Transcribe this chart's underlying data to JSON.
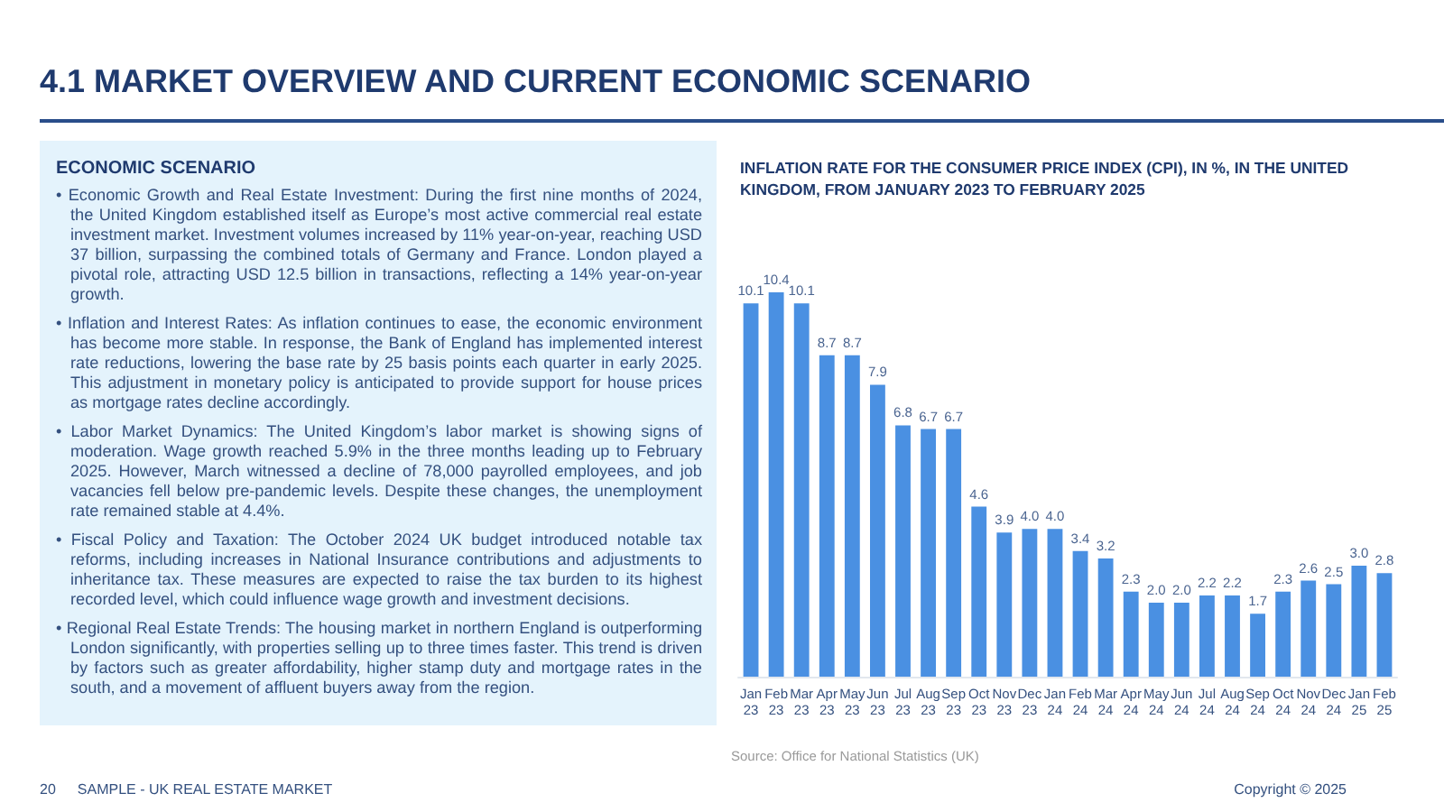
{
  "chart_data": [
    {
      "type": "other",
      "title": "4.1 MARKET OVERVIEW AND CURRENT ECONOMIC SCENARIO",
      "subtitle": "ECONOMIC SCENARIO",
      "annotations": [
        "• Economic Growth and Real Estate Investment: During the first nine months of 2024, the United Kingdom established itself as Europe’s most active commercial real estate investment market. Investment volumes increased by 11% year-on-year, reaching USD 37 billion, surpassing the combined totals of Germany and France. London played a pivotal role, attracting USD 12.5 billion in transactions, reflecting a 14% year-on-year growth.",
        "• Inflation and Interest Rates: As inflation continues to ease, the economic environment has become more stable. In response, the Bank of England has implemented interest rate reductions, lowering the base rate by 25 basis points each quarter in early 2025. This adjustment in monetary policy is anticipated to provide support for house prices as mortgage rates decline accordingly.",
        "• Labor Market Dynamics: The United Kingdom’s labor market is showing signs of moderation. Wage growth reached 5.9% in the three months leading up to February 2025. However, March witnessed a decline of 78,000 payrolled employees, and job vacancies fell below pre-pandemic levels. Despite these changes, the unemployment rate remained stable at 4.4%.",
        "• Fiscal Policy and Taxation: The October 2024 UK budget introduced notable tax reforms, including increases in National Insurance contributions and adjustments to inheritance tax. These measures are expected to raise the tax burden to its highest recorded level, which could influence wage growth and investment decisions.",
        "• Regional Real Estate Trends: The housing market in northern England is outperforming London significantly, with properties selling up to three times faster. This trend is driven by factors such as greater affordability, higher stamp duty and mortgage rates in the south, and a movement of affluent buyers away from the region."
      ]
    },
    {
      "type": "bar",
      "title": "INFLATION RATE FOR THE CONSUMER PRICE INDEX (CPI), IN %, IN THE UNITED KINGDOM, FROM JANUARY 2023 TO FEBRUARY 2025",
      "categories": [
        "Jan 23",
        "Feb 23",
        "Mar 23",
        "Apr 23",
        "May 23",
        "Jun 23",
        "Jul 23",
        "Aug 23",
        "Sep 23",
        "Oct 23",
        "Nov 23",
        "Dec 23",
        "Jan 24",
        "Feb 24",
        "Mar 24",
        "Apr 24",
        "May 24",
        "Jun 24",
        "Jul 24",
        "Aug 24",
        "Sep 24",
        "Oct 24",
        "Nov 24",
        "Dec 24",
        "Jan 25",
        "Feb 25"
      ],
      "values": [
        10.1,
        10.4,
        10.1,
        8.7,
        8.7,
        7.9,
        6.8,
        6.7,
        6.7,
        4.6,
        3.9,
        4.0,
        4.0,
        3.4,
        3.2,
        2.3,
        2.0,
        2.0,
        2.2,
        2.2,
        1.7,
        2.3,
        2.6,
        2.5,
        3.0,
        2.8
      ],
      "value_labels": [
        "10.1",
        "10.4",
        "10.1",
        "8.7",
        "8.7",
        "7.9",
        "6.8",
        "6.7",
        "6.7",
        "4.6",
        "3.9",
        "4.0",
        "4.0",
        "3.4",
        "3.2",
        "2.3",
        "2.0",
        "2.0",
        "2.2",
        "2.2",
        "1.7",
        "2.3",
        "2.6",
        "2.5",
        "3.0",
        "2.8"
      ],
      "color": "#4a90e2",
      "annotations": [
        "Source: Office for National Statistics (UK)"
      ]
    },
    {
      "type": "other",
      "annotations": [
        "20",
        "SAMPLE - UK REAL ESTATE MARKET",
        "Copyright © 2025"
      ]
    }
  ]
}
